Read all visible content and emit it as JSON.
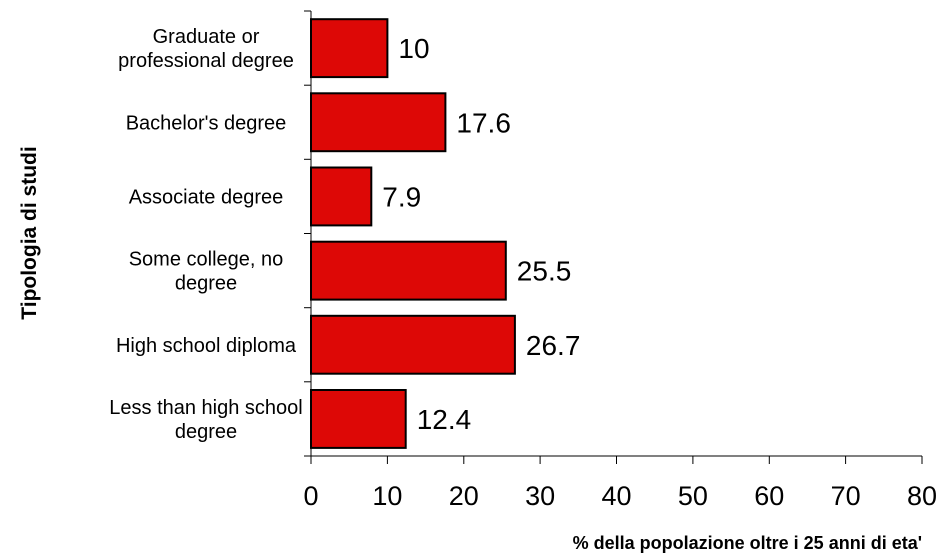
{
  "chart_data": {
    "type": "bar",
    "orientation": "horizontal",
    "title": "",
    "xlabel": "% della popolazione oltre i 25 anni di eta'",
    "ylabel": "Tipologia di studi",
    "xlim": [
      0,
      80
    ],
    "xticks": [
      "0",
      "10",
      "20",
      "30",
      "40",
      "50",
      "60",
      "70",
      "80"
    ],
    "grid": false,
    "legend": "none",
    "bar_color": "#dd0806",
    "categories": [
      [
        "Graduate or",
        "professional degree"
      ],
      [
        "Bachelor's degree"
      ],
      [
        "Associate degree"
      ],
      [
        "Some college, no",
        "degree"
      ],
      [
        "High school diploma"
      ],
      [
        "Less than high school",
        "degree"
      ]
    ],
    "values": [
      10,
      17.6,
      7.9,
      25.5,
      26.7,
      12.4
    ],
    "value_labels": [
      "10",
      "17.6",
      "7.9",
      "25.5",
      "26.7",
      "12.4"
    ]
  }
}
